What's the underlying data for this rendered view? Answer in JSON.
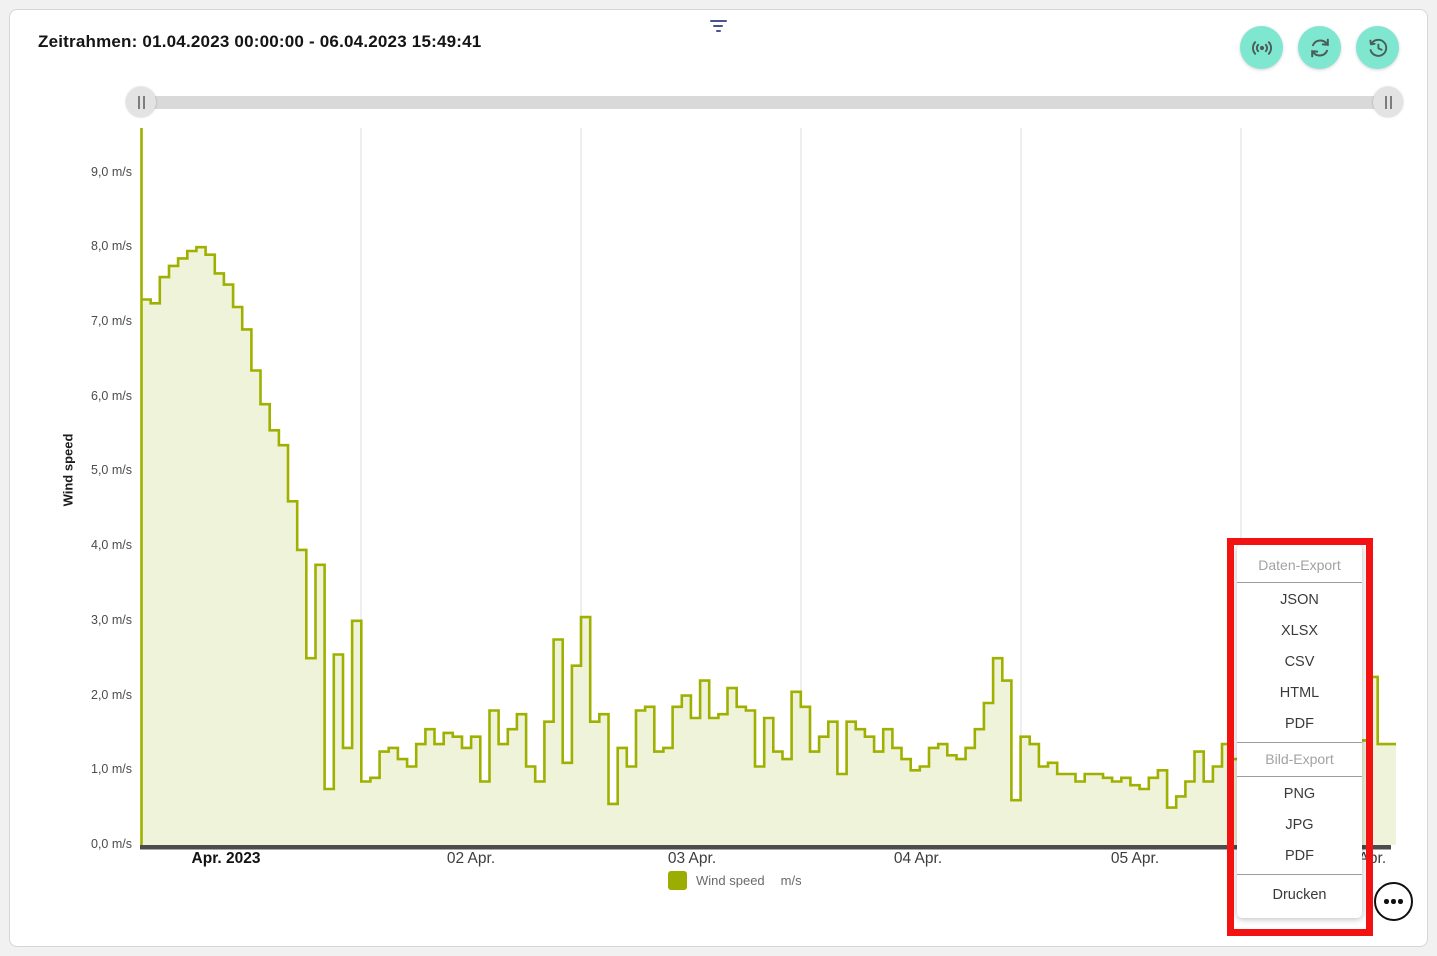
{
  "header": {
    "title": "Zeitrahmen: 01.04.2023 00:00:00 - 06.04.2023 15:49:41"
  },
  "toolbar": {
    "buttons": [
      {
        "icon": "broadcast-icon",
        "name": "live-data-button"
      },
      {
        "icon": "refresh-icon",
        "name": "refresh-button"
      },
      {
        "icon": "history-icon",
        "name": "history-button"
      }
    ],
    "button_color": "#7fe6d0",
    "icon_color": "#4b5d59"
  },
  "filter": {
    "icon": "filter-icon",
    "color": "#47568f"
  },
  "range_slider": {
    "start_handle": "||",
    "end_handle": "||"
  },
  "chart_data": {
    "type": "area",
    "subtype": "step-after",
    "title": "",
    "xlabel": "",
    "ylabel": "Wind speed",
    "x_start": "01.04.2023 00:00:00",
    "x_end": "06.04.2023 15:49:41",
    "x_interval_hours": 1,
    "ylim": [
      0,
      9.6
    ],
    "grid": "vertical-only",
    "legend_position": "bottom-center",
    "yticks": [
      "0,0 m/s",
      "1,0 m/s",
      "2,0 m/s",
      "3,0 m/s",
      "4,0 m/s",
      "5,0 m/s",
      "6,0 m/s",
      "7,0 m/s",
      "8,0 m/s",
      "9,0 m/s"
    ],
    "xticks": [
      "Apr. 2023",
      "02 Apr.",
      "03 Apr.",
      "04 Apr.",
      "05 Apr.",
      "06 Apr."
    ],
    "series": [
      {
        "name": "Wind speed",
        "unit": "m/s",
        "line_color": "#9fb000",
        "fill_color": "#eef3da",
        "values": [
          7.3,
          7.25,
          7.6,
          7.75,
          7.85,
          7.95,
          8.0,
          7.9,
          7.65,
          7.5,
          7.2,
          6.9,
          6.35,
          5.9,
          5.55,
          5.35,
          4.6,
          3.95,
          2.5,
          3.75,
          0.75,
          2.55,
          1.3,
          3.0,
          0.85,
          0.9,
          1.25,
          1.3,
          1.15,
          1.05,
          1.35,
          1.55,
          1.35,
          1.5,
          1.45,
          1.3,
          1.45,
          0.85,
          1.8,
          1.35,
          1.55,
          1.75,
          1.05,
          0.85,
          1.65,
          2.75,
          1.1,
          2.4,
          3.05,
          1.65,
          1.75,
          0.55,
          1.3,
          1.05,
          1.8,
          1.85,
          1.25,
          1.3,
          1.85,
          2.0,
          1.7,
          2.2,
          1.7,
          1.75,
          2.1,
          1.85,
          1.8,
          1.05,
          1.7,
          1.25,
          1.15,
          2.05,
          1.85,
          1.25,
          1.45,
          1.65,
          0.95,
          1.65,
          1.55,
          1.45,
          1.25,
          1.55,
          1.3,
          1.15,
          1.0,
          1.05,
          1.3,
          1.35,
          1.2,
          1.15,
          1.3,
          1.55,
          1.9,
          2.5,
          2.2,
          0.6,
          1.45,
          1.35,
          1.05,
          1.1,
          0.95,
          0.95,
          0.85,
          0.95,
          0.95,
          0.9,
          0.85,
          0.9,
          0.8,
          0.75,
          0.9,
          1.0,
          0.5,
          0.65,
          0.85,
          1.25,
          0.85,
          1.05,
          1.35,
          1.15,
          1.45,
          1.55,
          1.4,
          1.45,
          1.4,
          1.35,
          1.4,
          1.45,
          1.4,
          1.35,
          1.4,
          1.45,
          1.5,
          1.4,
          2.25,
          1.35,
          1.35
        ]
      }
    ]
  },
  "legend": {
    "label": "Wind speed",
    "unit": "m/s",
    "swatch_color": "#9aad00"
  },
  "export_menu": {
    "highlight_color": "#f31212",
    "sections": [
      {
        "header": "Daten-Export",
        "items": [
          "JSON",
          "XLSX",
          "CSV",
          "HTML",
          "PDF"
        ]
      },
      {
        "header": "Bild-Export",
        "items": [
          "PNG",
          "JPG",
          "PDF"
        ]
      }
    ],
    "footer": "Drucken"
  },
  "more_button": {
    "icon": "ellipsis-icon"
  }
}
